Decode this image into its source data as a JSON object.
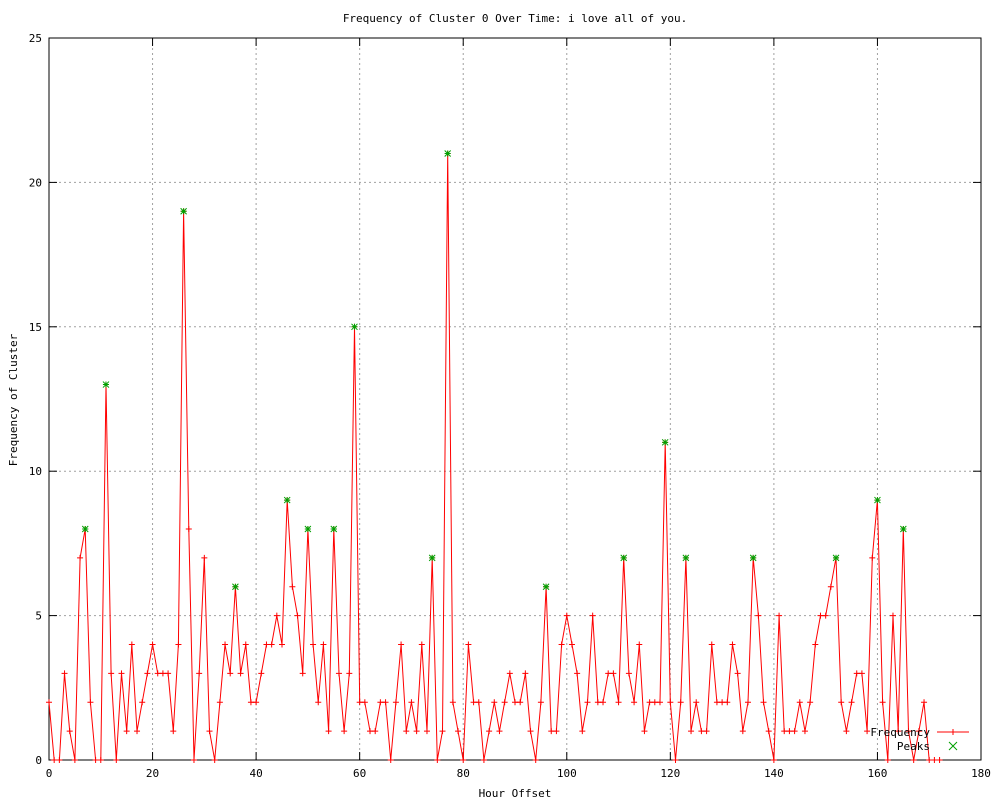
{
  "chart_data": {
    "type": "line",
    "title": "Frequency of Cluster 0 Over Time: i love all of you.",
    "xlabel": "Hour Offset",
    "ylabel": "Frequency of Cluster",
    "xlim": [
      0,
      180
    ],
    "ylim": [
      0,
      25
    ],
    "x_ticks": [
      0,
      20,
      40,
      60,
      80,
      100,
      120,
      140,
      160,
      180
    ],
    "y_ticks": [
      0,
      5,
      10,
      15,
      20,
      25
    ],
    "grid": true,
    "legend_position": "bottom-right",
    "series": [
      {
        "name": "Frequency",
        "color": "#ff0000",
        "marker": "plus",
        "x": [
          0,
          1,
          2,
          3,
          4,
          5,
          6,
          7,
          8,
          9,
          10,
          11,
          12,
          13,
          14,
          15,
          16,
          17,
          18,
          19,
          20,
          21,
          22,
          23,
          24,
          25,
          26,
          27,
          28,
          29,
          30,
          31,
          32,
          33,
          34,
          35,
          36,
          37,
          38,
          39,
          40,
          41,
          42,
          43,
          44,
          45,
          46,
          47,
          48,
          49,
          50,
          51,
          52,
          53,
          54,
          55,
          56,
          57,
          58,
          59,
          60,
          61,
          62,
          63,
          64,
          65,
          66,
          67,
          68,
          69,
          70,
          71,
          72,
          73,
          74,
          75,
          76,
          77,
          78,
          79,
          80,
          81,
          82,
          83,
          84,
          85,
          86,
          87,
          88,
          89,
          90,
          91,
          92,
          93,
          94,
          95,
          96,
          97,
          98,
          99,
          100,
          101,
          102,
          103,
          104,
          105,
          106,
          107,
          108,
          109,
          110,
          111,
          112,
          113,
          114,
          115,
          116,
          117,
          118,
          119,
          120,
          121,
          122,
          123,
          124,
          125,
          126,
          127,
          128,
          129,
          130,
          131,
          132,
          133,
          134,
          135,
          136,
          137,
          138,
          139,
          140,
          141,
          142,
          143,
          144,
          145,
          146,
          147,
          148,
          149,
          150,
          151,
          152,
          153,
          154,
          155,
          156,
          157,
          158,
          159,
          160,
          161,
          162,
          163,
          164,
          165,
          166,
          167,
          168,
          169,
          170,
          171,
          172
        ],
        "values": [
          2,
          0,
          0,
          3,
          1,
          0,
          7,
          8,
          2,
          0,
          0,
          13,
          3,
          0,
          3,
          1,
          4,
          1,
          2,
          3,
          4,
          3,
          3,
          3,
          1,
          4,
          19,
          8,
          0,
          3,
          7,
          1,
          0,
          2,
          4,
          3,
          6,
          3,
          4,
          2,
          2,
          3,
          4,
          4,
          5,
          4,
          9,
          6,
          5,
          3,
          8,
          4,
          2,
          4,
          1,
          8,
          3,
          1,
          3,
          15,
          2,
          2,
          1,
          1,
          2,
          2,
          0,
          2,
          4,
          1,
          2,
          1,
          4,
          1,
          7,
          0,
          1,
          21,
          2,
          1,
          0,
          4,
          2,
          2,
          0,
          1,
          2,
          1,
          2,
          3,
          2,
          2,
          3,
          1,
          0,
          2,
          6,
          1,
          1,
          4,
          5,
          4,
          3,
          1,
          2,
          5,
          2,
          2,
          3,
          3,
          2,
          7,
          3,
          2,
          4,
          1,
          2,
          2,
          2,
          11,
          2,
          0,
          2,
          7,
          1,
          2,
          1,
          1,
          4,
          2,
          2,
          2,
          4,
          3,
          1,
          2,
          7,
          5,
          2,
          1,
          0,
          5,
          1,
          1,
          1,
          2,
          1,
          2,
          4,
          5,
          5,
          6,
          7,
          2,
          1,
          2,
          3,
          3,
          1,
          7,
          9,
          2,
          0,
          5,
          1,
          8,
          1,
          0,
          1,
          2,
          0,
          0,
          0
        ]
      },
      {
        "name": "Peaks",
        "color": "#00a000",
        "marker": "x",
        "x": [
          7,
          11,
          26,
          36,
          46,
          50,
          55,
          59,
          74,
          77,
          96,
          111,
          119,
          123,
          136,
          152,
          160,
          165
        ],
        "values": [
          8,
          13,
          19,
          6,
          9,
          8,
          8,
          15,
          7,
          21,
          6,
          7,
          11,
          7,
          7,
          7,
          9,
          8
        ]
      }
    ]
  }
}
